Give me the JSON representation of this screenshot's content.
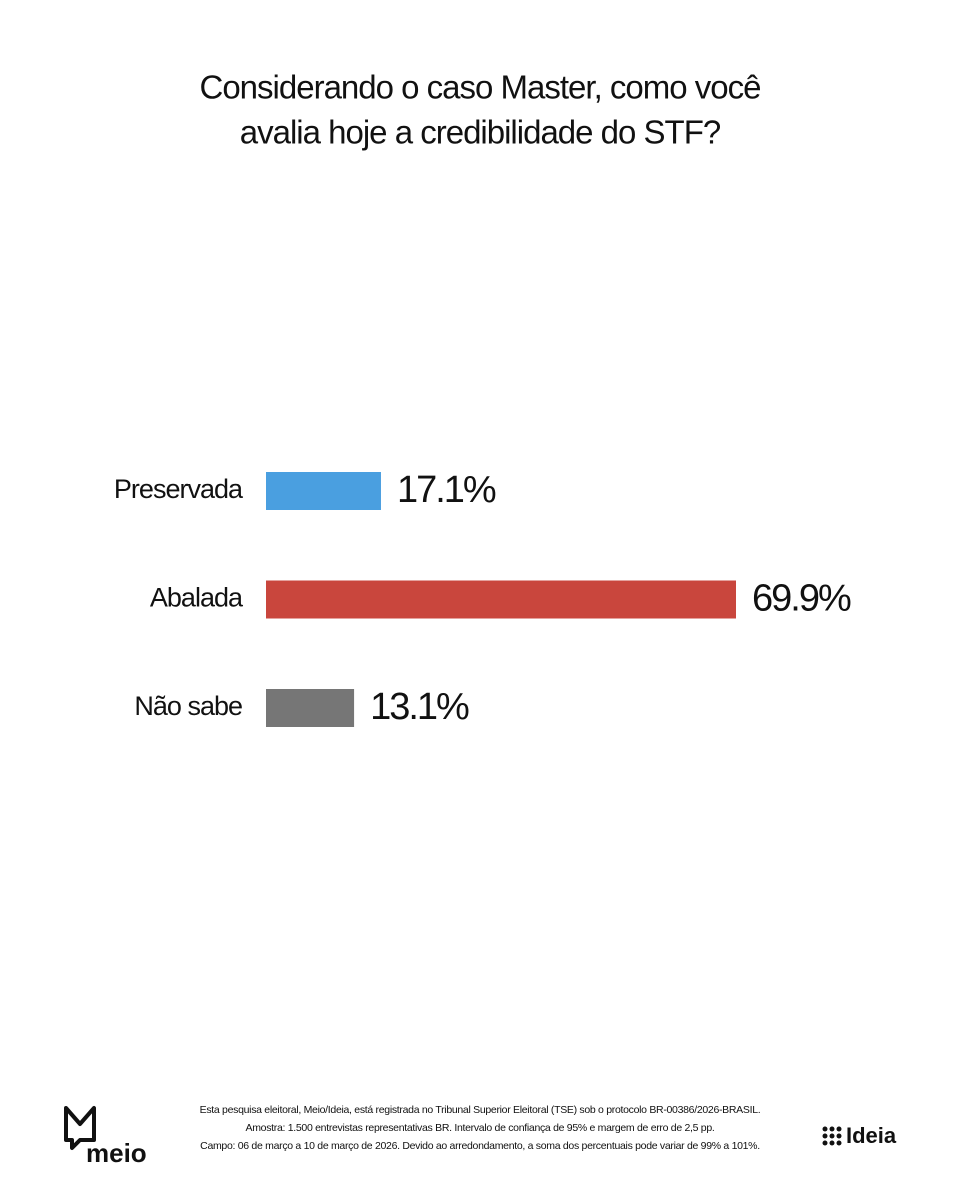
{
  "chart_data": {
    "type": "hbar",
    "title": [
      "Considerando o caso Master, como você",
      "avalia hoje a credibilidade do STF?"
    ],
    "categories": [
      "Preservada",
      "Abalada",
      "Não sabe"
    ],
    "values": [
      17.1,
      69.9,
      13.1
    ],
    "value_labels": [
      "17.1%",
      "69.9%",
      "13.1%"
    ],
    "colors": [
      "#4a9fe0",
      "#c9463d",
      "#767676"
    ],
    "notes": [
      "Esta pesquisa eleitoral, Meio/Ideia, está registrada no Tribunal Superior Eleitoral (TSE) sob o protocolo BR-00386/2026-BRASIL.",
      "Amostra: 1.500 entrevistas representativas BR. Intervalo de confiança de 95% e margem de erro de 2,5 pp.",
      "Campo: 06 de março a 10 de março de 2026. Devido ao arredondamento, a soma dos percentuais pode variar de 99% a 101%."
    ],
    "logos": [
      "meio",
      "Ideia"
    ]
  }
}
